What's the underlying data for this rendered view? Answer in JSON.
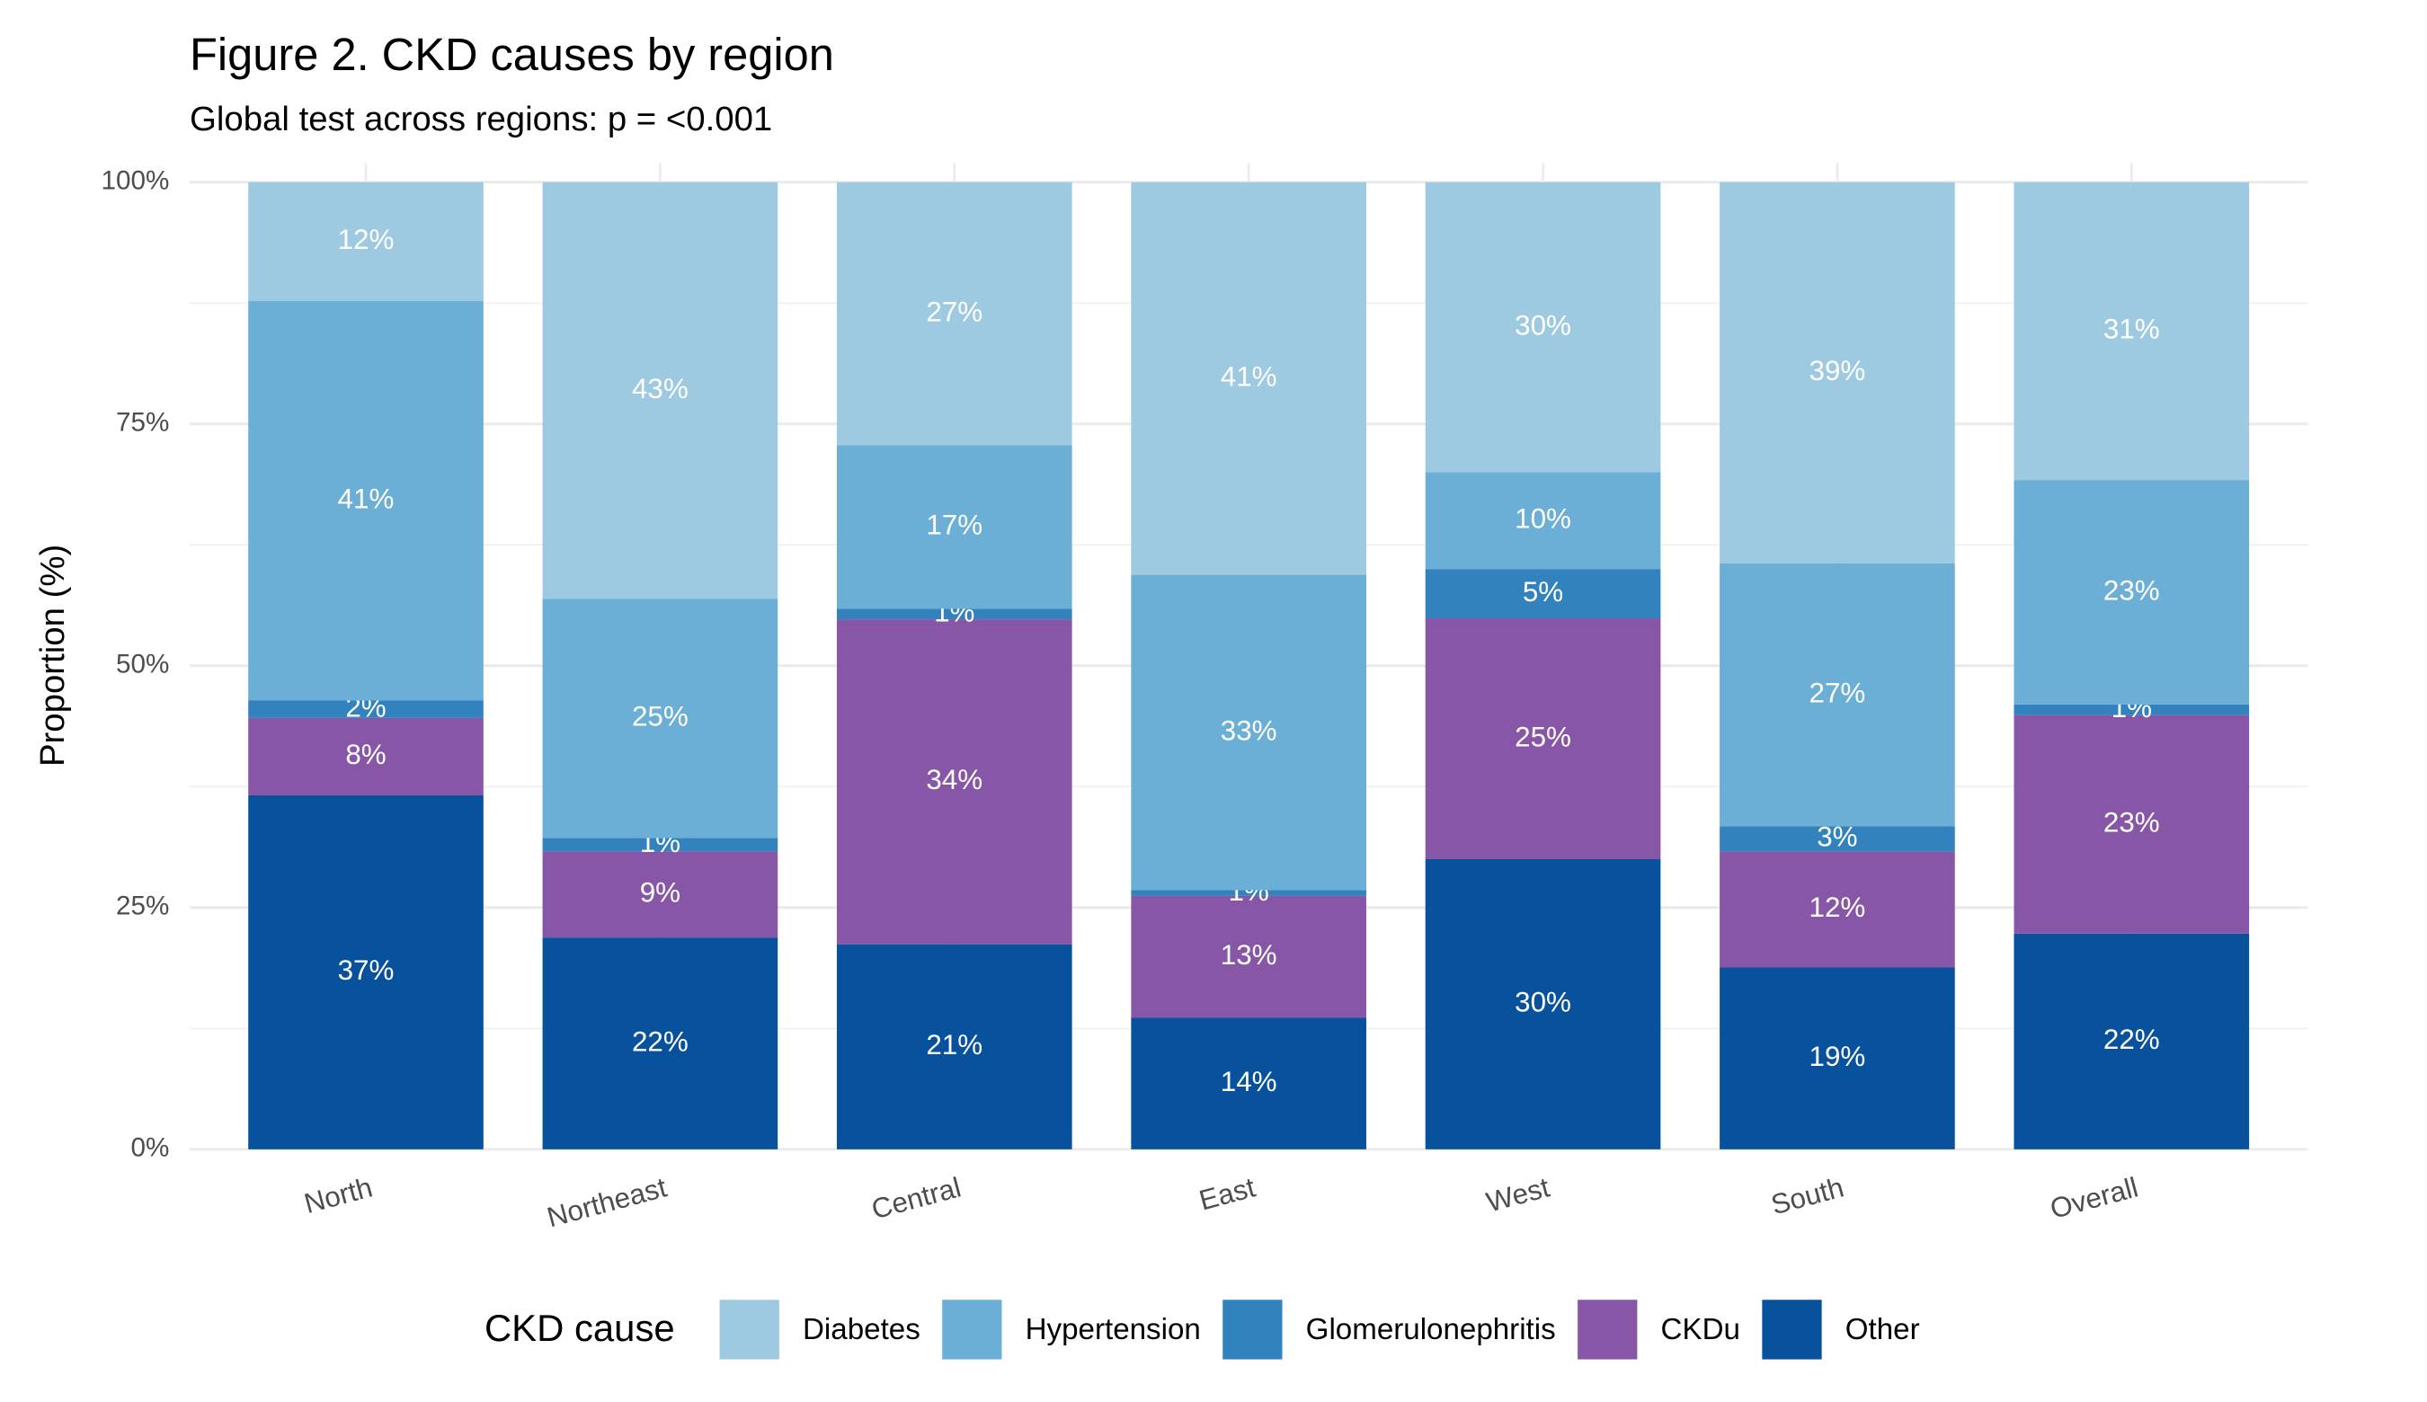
{
  "chart_data": {
    "type": "stacked_bar",
    "title": "Figure 2. CKD causes by region",
    "subtitle": "Global test across regions: p = <0.001",
    "y_label": "Proportion (%)",
    "legend_title": "CKD cause",
    "legend_position": "bottom",
    "grid": true,
    "categories": [
      "North",
      "Northeast",
      "Central",
      "East",
      "West",
      "South",
      "Overall"
    ],
    "ylim": [
      0,
      100
    ],
    "yticks": [
      {
        "value": 0,
        "label": "0%"
      },
      {
        "value": 25,
        "label": "25%"
      },
      {
        "value": 50,
        "label": "50%"
      },
      {
        "value": 75,
        "label": "75%"
      },
      {
        "value": 100,
        "label": "100%"
      }
    ],
    "series": [
      {
        "name": "Diabetes",
        "color": "#9ecae1",
        "values": [
          12.3,
          43.1,
          27.2,
          40.6,
          30.0,
          39.4,
          30.8
        ],
        "value_labels": [
          "12%",
          "43%",
          "27%",
          "41%",
          "30%",
          "39%",
          "31%"
        ]
      },
      {
        "name": "Hypertension",
        "color": "#6baed6",
        "values": [
          41.3,
          24.7,
          16.9,
          32.6,
          10.0,
          27.2,
          23.2
        ],
        "value_labels": [
          "41%",
          "25%",
          "17%",
          "33%",
          "10%",
          "27%",
          "23%"
        ]
      },
      {
        "name": "Glomerulonephritis",
        "color": "#3182bd",
        "values": [
          1.8,
          1.4,
          1.1,
          0.6,
          5.1,
          2.6,
          1.1
        ],
        "value_labels": [
          "2%",
          "1%",
          "1%",
          "1%",
          "5%",
          "3%",
          "1%"
        ]
      },
      {
        "name": "CKDu",
        "color": "#8856a7",
        "values": [
          8.0,
          8.9,
          33.6,
          12.6,
          24.9,
          12.0,
          22.6
        ],
        "value_labels": [
          "8%",
          "9%",
          "34%",
          "13%",
          "25%",
          "12%",
          "23%"
        ]
      },
      {
        "name": "Other",
        "color": "#08519c",
        "values": [
          36.6,
          21.9,
          21.2,
          13.6,
          30.0,
          18.8,
          22.3
        ],
        "value_labels": [
          "37%",
          "22%",
          "21%",
          "14%",
          "30%",
          "19%",
          "22%"
        ]
      }
    ]
  }
}
